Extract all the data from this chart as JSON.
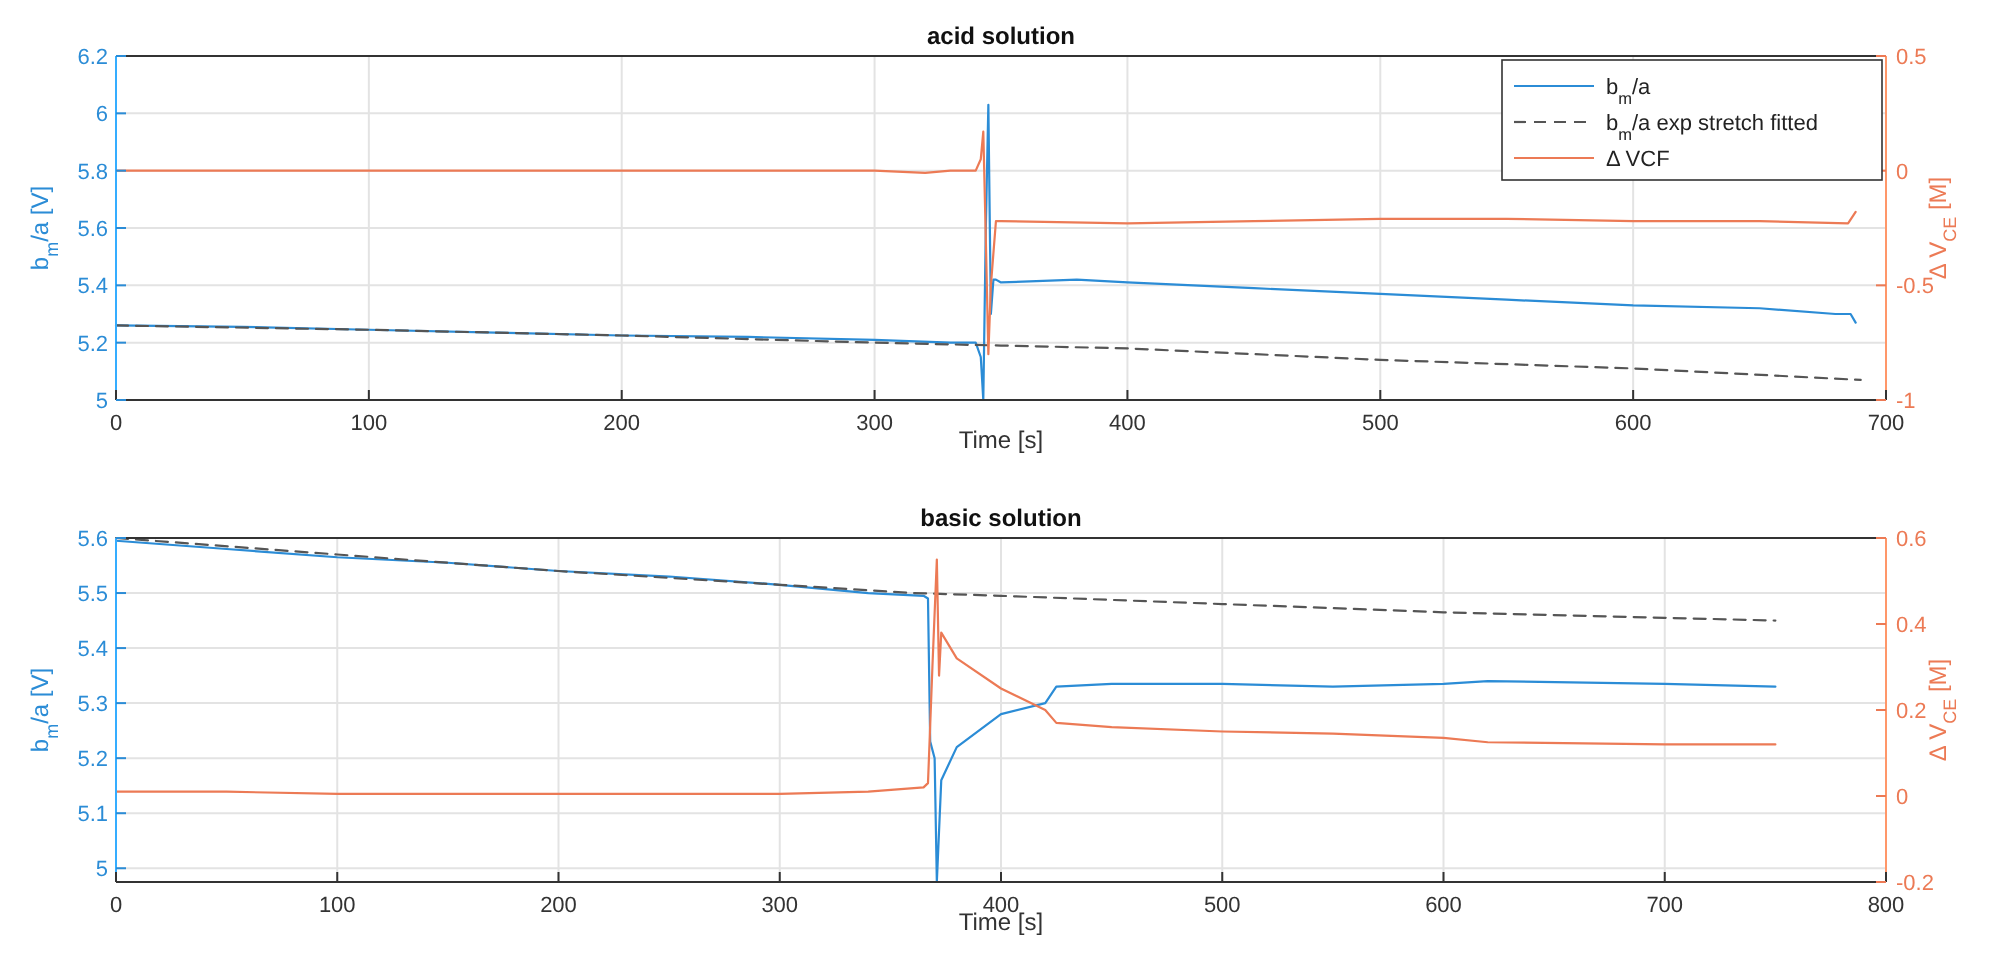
{
  "chart_data": [
    {
      "type": "line",
      "title": "acid solution",
      "xlabel": "Time [s]",
      "ylabel": "b$_{m}$/a [V]",
      "y2label": "Δ V$_{CE}$ [M]",
      "xlim": [
        0,
        700
      ],
      "xticks": [
        0,
        100,
        200,
        300,
        400,
        500,
        600,
        700
      ],
      "ylim": [
        5,
        6.2
      ],
      "yticks": [
        5,
        5.2,
        5.4,
        5.6,
        5.8,
        6,
        6.2
      ],
      "y2lim": [
        -1,
        0.5
      ],
      "y2ticks": [
        -1,
        -0.5,
        0,
        0.5
      ],
      "grid": true,
      "legend": "top right",
      "series": [
        {
          "name": "b$_{m}$/a",
          "color": "#2b8cd6",
          "x": [
            0,
            50,
            100,
            150,
            200,
            250,
            300,
            330,
            340,
            342,
            343,
            344,
            345,
            346,
            347,
            348,
            350,
            380,
            400,
            450,
            500,
            550,
            600,
            650,
            680,
            686,
            688
          ],
          "values": [
            5.26,
            5.255,
            5.245,
            5.235,
            5.225,
            5.22,
            5.21,
            5.2,
            5.2,
            5.15,
            5.0,
            5.6,
            6.03,
            5.3,
            5.42,
            5.42,
            5.41,
            5.42,
            5.41,
            5.39,
            5.37,
            5.35,
            5.33,
            5.32,
            5.3,
            5.3,
            5.27
          ]
        },
        {
          "name": "b$_{m}$/a exp stretch fitted",
          "color": "#555555",
          "line_style": "dashed",
          "x": [
            0,
            100,
            200,
            300,
            350,
            400,
            500,
            600,
            690
          ],
          "values": [
            5.26,
            5.245,
            5.225,
            5.2,
            5.19,
            5.18,
            5.14,
            5.11,
            5.07
          ]
        },
        {
          "name": "Δ VCF",
          "color": "#ec7a55",
          "axis": "y2",
          "x": [
            0,
            50,
            100,
            150,
            200,
            250,
            300,
            320,
            330,
            340,
            342,
            343,
            344,
            345,
            346,
            348,
            350,
            400,
            450,
            500,
            550,
            600,
            650,
            685,
            688
          ],
          "values": [
            0,
            0,
            0,
            0,
            0,
            0,
            0,
            -0.01,
            0,
            0,
            0.05,
            0.17,
            -0.3,
            -0.8,
            -0.5,
            -0.22,
            -0.22,
            -0.23,
            -0.22,
            -0.21,
            -0.21,
            -0.22,
            -0.22,
            -0.23,
            -0.18
          ]
        }
      ]
    },
    {
      "type": "line",
      "title": "basic solution",
      "xlabel": "Time [s]",
      "ylabel": "b$_{m}$/a [V]",
      "y2label": "Δ V$_{CE}$ [M]",
      "xlim": [
        0,
        800
      ],
      "xticks": [
        0,
        100,
        200,
        300,
        400,
        500,
        600,
        700,
        800
      ],
      "ylim": [
        4.975,
        5.6
      ],
      "yticks": [
        5,
        5.1,
        5.2,
        5.3,
        5.4,
        5.5,
        5.6
      ],
      "y2lim": [
        -0.2,
        0.6
      ],
      "y2ticks": [
        -0.2,
        0,
        0.2,
        0.4,
        0.6
      ],
      "grid": true,
      "series": [
        {
          "color": "#2b8cd6",
          "x": [
            0,
            50,
            100,
            150,
            200,
            250,
            300,
            340,
            365,
            367,
            368,
            370,
            371,
            373,
            380,
            400,
            420,
            425,
            450,
            500,
            550,
            600,
            620,
            700,
            750
          ],
          "values": [
            5.595,
            5.58,
            5.565,
            5.555,
            5.54,
            5.53,
            5.515,
            5.5,
            5.495,
            5.49,
            5.23,
            5.2,
            4.975,
            5.16,
            5.22,
            5.28,
            5.3,
            5.33,
            5.335,
            5.335,
            5.33,
            5.335,
            5.34,
            5.335,
            5.33
          ]
        },
        {
          "color": "#555555",
          "line_style": "dashed",
          "x": [
            0,
            100,
            200,
            300,
            360,
            400,
            500,
            600,
            700,
            750
          ],
          "values": [
            5.6,
            5.57,
            5.54,
            5.515,
            5.5,
            5.495,
            5.48,
            5.465,
            5.455,
            5.45
          ]
        },
        {
          "color": "#ec7a55",
          "axis": "y2",
          "x": [
            0,
            50,
            100,
            150,
            200,
            250,
            300,
            340,
            365,
            367,
            369,
            371,
            372,
            373,
            380,
            400,
            420,
            425,
            450,
            500,
            550,
            600,
            620,
            700,
            750
          ],
          "values": [
            0.01,
            0.01,
            0.005,
            0.005,
            0.005,
            0.005,
            0.005,
            0.01,
            0.02,
            0.03,
            0.3,
            0.55,
            0.28,
            0.38,
            0.32,
            0.25,
            0.2,
            0.17,
            0.16,
            0.15,
            0.145,
            0.135,
            0.125,
            0.12,
            0.12
          ]
        }
      ]
    }
  ]
}
